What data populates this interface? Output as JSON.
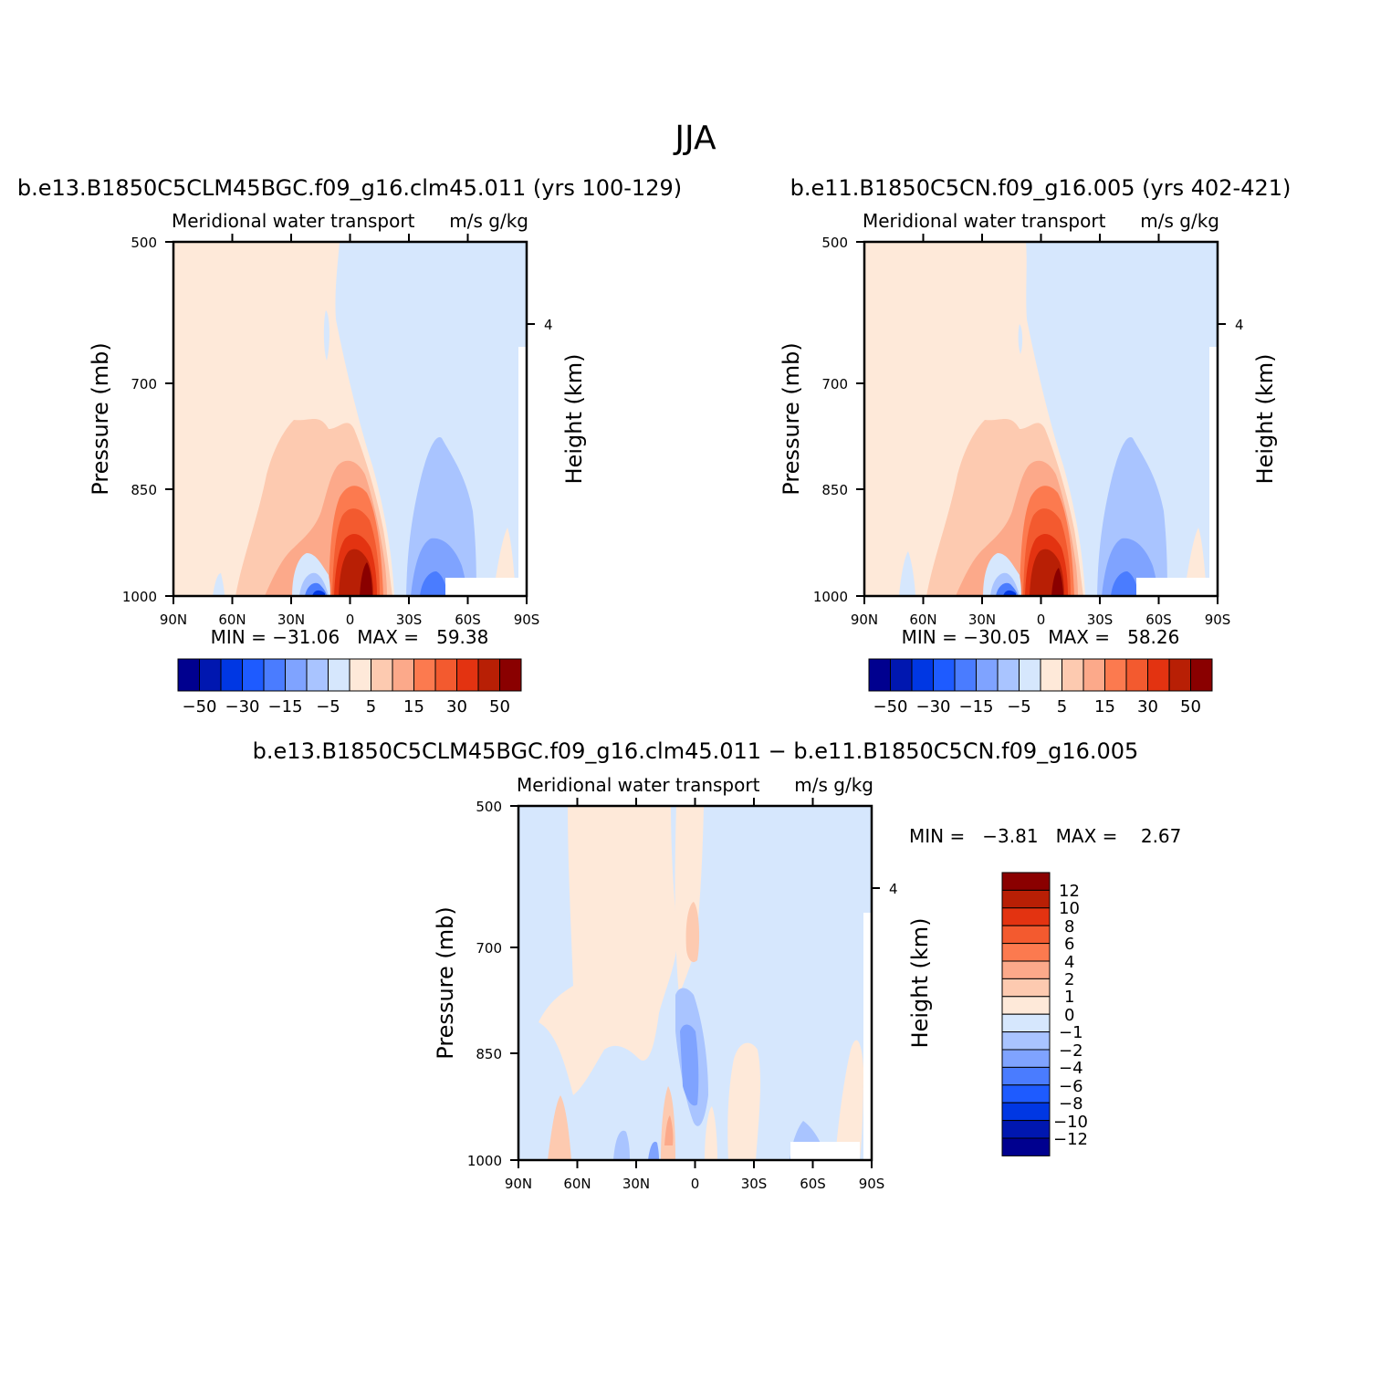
{
  "figure_title": "JJA",
  "colors": {
    "panel_scale": [
      "#00008f",
      "#0017b0",
      "#0037e3",
      "#1e5bff",
      "#4a7cff",
      "#7fa3ff",
      "#a9c4ff",
      "#d6e7fd",
      "#fee9d9",
      "#fdcab0",
      "#fca98a",
      "#fc7a4f",
      "#f35a2f",
      "#e33311",
      "#b81f05",
      "#8a0000"
    ],
    "diff_scale": [
      "#8a0000",
      "#b81f05",
      "#e33311",
      "#f35a2f",
      "#fc7a4f",
      "#fca98a",
      "#fdcab0",
      "#fee9d9",
      "#d6e7fd",
      "#a9c4ff",
      "#7fa3ff",
      "#4a7cff",
      "#1e5bff",
      "#0037e3",
      "#0017b0",
      "#00008f"
    ]
  },
  "panels": [
    {
      "id": "case1",
      "case_title": "b.e13.B1850C5CLM45BGC.f09_g16.clm45.011 (yrs 100-129)",
      "left_string": "Meridional water transport",
      "right_string": "m/s g/kg",
      "min_max": "MIN = -31.06   MAX =   59.38",
      "colorbar_labels": [
        "-50",
        "-30",
        "-15",
        "-5",
        "5",
        "15",
        "30",
        "50"
      ]
    },
    {
      "id": "case2",
      "case_title": "b.e11.B1850C5CN.f09_g16.005 (yrs 402-421)",
      "left_string": "Meridional water transport",
      "right_string": "m/s g/kg",
      "min_max": "MIN = -30.05   MAX =   58.26",
      "colorbar_labels": [
        "-50",
        "-30",
        "-15",
        "-5",
        "5",
        "15",
        "30",
        "50"
      ]
    },
    {
      "id": "diff",
      "case_title": "b.e13.B1850C5CLM45BGC.f09_g16.clm45.011 - b.e11.B1850C5CN.f09_g16.005",
      "left_string": "Meridional water transport",
      "right_string": "m/s g/kg",
      "min_max": "MIN =   -3.81   MAX =    2.67",
      "colorbar_labels": [
        "12",
        "10",
        "8",
        "6",
        "4",
        "2",
        "1",
        "0",
        "-1",
        "-2",
        "-4",
        "-6",
        "-8",
        "-10",
        "-12"
      ]
    }
  ],
  "chart_data": [
    {
      "type": "heatmap",
      "title": "b.e13.B1850C5CLM45BGC.f09_g16.clm45.011 (yrs 100-129)",
      "subtitle_left": "Meridional water transport",
      "units": "m/s g/kg",
      "xlabel": "",
      "ylabel": "Pressure (mb)",
      "ylabel_right": "Height (km)",
      "x_ticks": [
        "90N",
        "60N",
        "30N",
        "0",
        "30S",
        "60S",
        "90S"
      ],
      "y_ticks": [
        500,
        700,
        850,
        1000
      ],
      "y_right_ticks": [
        4
      ],
      "ylim": [
        1000,
        500
      ],
      "min": -31.06,
      "max": 59.38,
      "levels": [
        -50,
        -40,
        -30,
        -20,
        -15,
        -10,
        -5,
        0,
        5,
        10,
        15,
        20,
        30,
        40,
        50
      ],
      "features": [
        {
          "label": "positive core",
          "lat": 6,
          "p": 980,
          "value": 59
        },
        {
          "label": "negative core",
          "lat": 22,
          "p": 990,
          "value": -31
        },
        {
          "label": "negative SH",
          "lat": -40,
          "p": 990,
          "value": -20
        }
      ]
    },
    {
      "type": "heatmap",
      "title": "b.e11.B1850C5CN.f09_g16.005 (yrs 402-421)",
      "subtitle_left": "Meridional water transport",
      "units": "m/s g/kg",
      "xlabel": "",
      "ylabel": "Pressure (mb)",
      "ylabel_right": "Height (km)",
      "x_ticks": [
        "90N",
        "60N",
        "30N",
        "0",
        "30S",
        "60S",
        "90S"
      ],
      "y_ticks": [
        500,
        700,
        850,
        1000
      ],
      "y_right_ticks": [
        4
      ],
      "ylim": [
        1000,
        500
      ],
      "min": -30.05,
      "max": 58.26,
      "levels": [
        -50,
        -40,
        -30,
        -20,
        -15,
        -10,
        -5,
        0,
        5,
        10,
        15,
        20,
        30,
        40,
        50
      ],
      "features": [
        {
          "label": "positive core",
          "lat": 6,
          "p": 980,
          "value": 58
        },
        {
          "label": "negative core",
          "lat": 22,
          "p": 990,
          "value": -30
        },
        {
          "label": "negative SH",
          "lat": -40,
          "p": 990,
          "value": -20
        }
      ]
    },
    {
      "type": "heatmap",
      "title": "b.e13.B1850C5CLM45BGC.f09_g16.clm45.011 - b.e11.B1850C5CN.f09_g16.005",
      "subtitle_left": "Meridional water transport",
      "units": "m/s g/kg",
      "xlabel": "",
      "ylabel": "Pressure (mb)",
      "ylabel_right": "Height (km)",
      "x_ticks": [
        "90N",
        "60N",
        "30N",
        "0",
        "30S",
        "60S",
        "90S"
      ],
      "y_ticks": [
        500,
        700,
        850,
        1000
      ],
      "y_right_ticks": [
        4
      ],
      "ylim": [
        1000,
        500
      ],
      "min": -3.81,
      "max": 2.67,
      "levels": [
        -12,
        -10,
        -8,
        -6,
        -4,
        -2,
        -1,
        0,
        1,
        2,
        4,
        6,
        8,
        10,
        12
      ],
      "features": [
        {
          "label": "positive band",
          "lat": 55,
          "p": 700,
          "value": 0.5
        },
        {
          "label": "negative band",
          "lat": 5,
          "p": 870,
          "value": -3.8
        },
        {
          "label": "positive spot",
          "lat": -2,
          "p": 690,
          "value": 1.5
        }
      ]
    }
  ]
}
